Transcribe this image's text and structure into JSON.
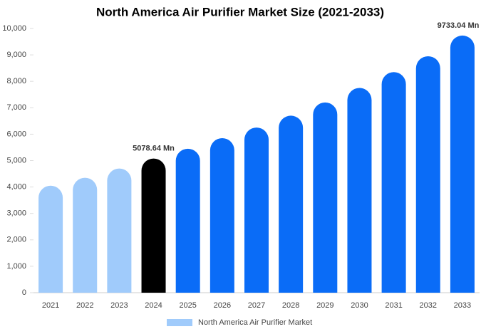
{
  "chart_data": {
    "type": "bar",
    "title": "North America Air Purifier Market Size (2021-2033)",
    "categories": [
      "2021",
      "2022",
      "2023",
      "2024",
      "2025",
      "2026",
      "2027",
      "2028",
      "2029",
      "2030",
      "2031",
      "2032",
      "2033"
    ],
    "series": [
      {
        "name": "North America Air Purifier Market",
        "color": "#a0cbfb",
        "values": [
          4050,
          4350,
          4700,
          5078.64,
          5450,
          5850,
          6250,
          6700,
          7200,
          7750,
          8350,
          8950,
          9733.04
        ],
        "value_labels": [
          null,
          null,
          null,
          "5078.64 Mn",
          null,
          null,
          null,
          null,
          null,
          null,
          null,
          null,
          "9733.04 Mn"
        ],
        "colors": [
          "#a0cbfb",
          "#a0cbfb",
          "#a0cbfb",
          "#000000",
          "#0a6cf7",
          "#0a6cf7",
          "#0a6cf7",
          "#0a6cf7",
          "#0a6cf7",
          "#0a6cf7",
          "#0a6cf7",
          "#0a6cf7",
          "#0a6cf7"
        ]
      }
    ],
    "ylim": [
      0,
      10000
    ],
    "yticks": [
      0,
      {
        "value": 1000,
        "label": "1,000"
      },
      {
        "value": 2000,
        "label": "2,000"
      },
      {
        "value": 3000,
        "label": "3,000"
      },
      {
        "value": 4000,
        "label": "4,000"
      },
      {
        "value": 5000,
        "label": "5,000"
      },
      {
        "value": 6000,
        "label": "6,000"
      },
      {
        "value": 7000,
        "label": "7,000"
      },
      {
        "value": 8000,
        "label": "8,000"
      },
      {
        "value": 9000,
        "label": "9,000"
      },
      {
        "value": 10000,
        "label": "10,000"
      }
    ],
    "grid": false,
    "legend": "bottom"
  }
}
